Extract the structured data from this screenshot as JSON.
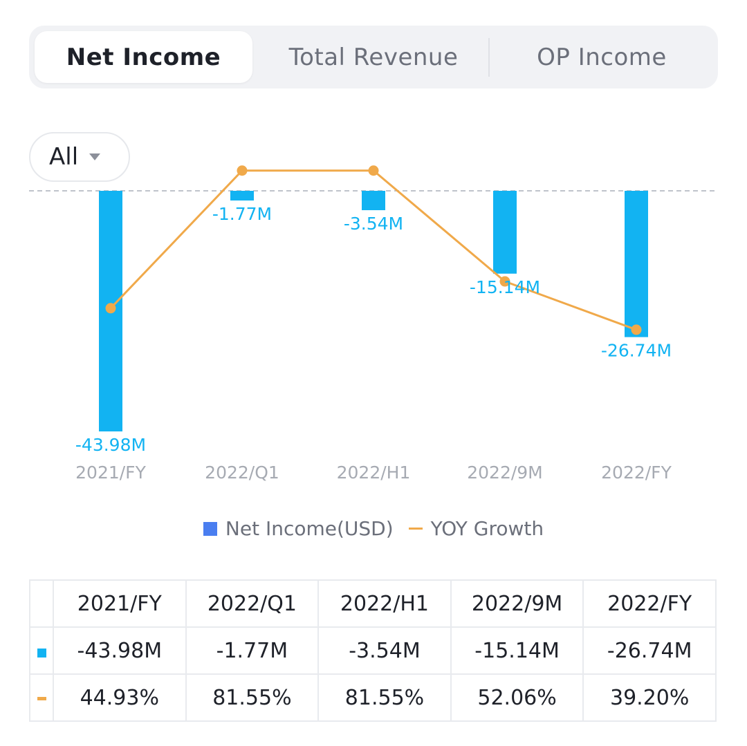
{
  "tabs": [
    {
      "label": "Net Income",
      "active": true
    },
    {
      "label": "Total Revenue",
      "active": false
    },
    {
      "label": "OP Income",
      "active": false
    }
  ],
  "filter": {
    "label": "All"
  },
  "colors": {
    "bar": "#12b3f2",
    "line": "#f0a94a",
    "positive": "#3cbf8a",
    "legend_bar": "#4a7ef0"
  },
  "legend": {
    "bar_label": "Net Income(USD)",
    "line_label": "YOY Growth"
  },
  "chart_data": {
    "type": "bar",
    "categories": [
      "2021/FY",
      "2022/Q1",
      "2022/H1",
      "2022/9M",
      "2022/FY"
    ],
    "series": [
      {
        "name": "Net Income(USD)",
        "type": "bar",
        "values": [
          -43.98,
          -1.77,
          -3.54,
          -15.14,
          -26.74
        ],
        "labels": [
          "-43.98M",
          "-1.77M",
          "-3.54M",
          "-15.14M",
          "-26.74M"
        ]
      },
      {
        "name": "YOY Growth",
        "type": "line",
        "values": [
          44.93,
          81.55,
          81.55,
          52.06,
          39.2
        ]
      }
    ],
    "ylim": [
      -43.98,
      0
    ],
    "line_ylim": [
      0,
      85
    ]
  },
  "table": {
    "headers": [
      "2021/FY",
      "2022/Q1",
      "2022/H1",
      "2022/9M",
      "2022/FY"
    ],
    "income_row": [
      "-43.98M",
      "-1.77M",
      "-3.54M",
      "-15.14M",
      "-26.74M"
    ],
    "growth_row": [
      "44.93%",
      "81.55%",
      "81.55%",
      "52.06%",
      "39.20%"
    ]
  }
}
